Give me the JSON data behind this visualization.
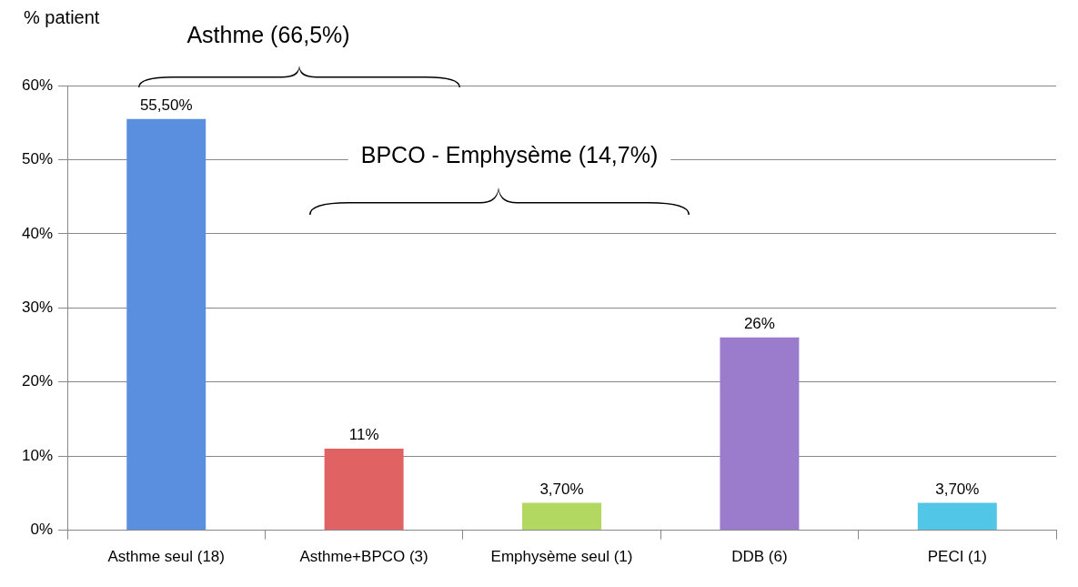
{
  "chart_data": {
    "type": "bar",
    "ylabel": "% patient",
    "categories": [
      "Asthme seul (18)",
      "Asthme+BPCO (3)",
      "Emphysème seul (1)",
      "DDB (6)",
      "PECI (1)"
    ],
    "values": [
      55.5,
      11,
      3.7,
      26,
      3.7
    ],
    "value_labels": [
      "55,50%",
      "11%",
      "3,70%",
      "26%",
      "3,70%"
    ],
    "colors": [
      "#5a8fe0",
      "#e06262",
      "#b2d862",
      "#9b7bcc",
      "#52c6e6"
    ],
    "ylim": [
      0,
      60
    ],
    "yticks": [
      {
        "value": 0,
        "label": "0%"
      },
      {
        "value": 10,
        "label": "10%"
      },
      {
        "value": 20,
        "label": "20%"
      },
      {
        "value": 30,
        "label": "30%"
      },
      {
        "value": 40,
        "label": "40%"
      },
      {
        "value": 50,
        "label": "50%"
      },
      {
        "value": 60,
        "label": "60%"
      }
    ],
    "grid": "y",
    "legend": false,
    "annotations": [
      "Asthme (66,5%)",
      "BPCO - Emphysème (14,7%)"
    ]
  }
}
